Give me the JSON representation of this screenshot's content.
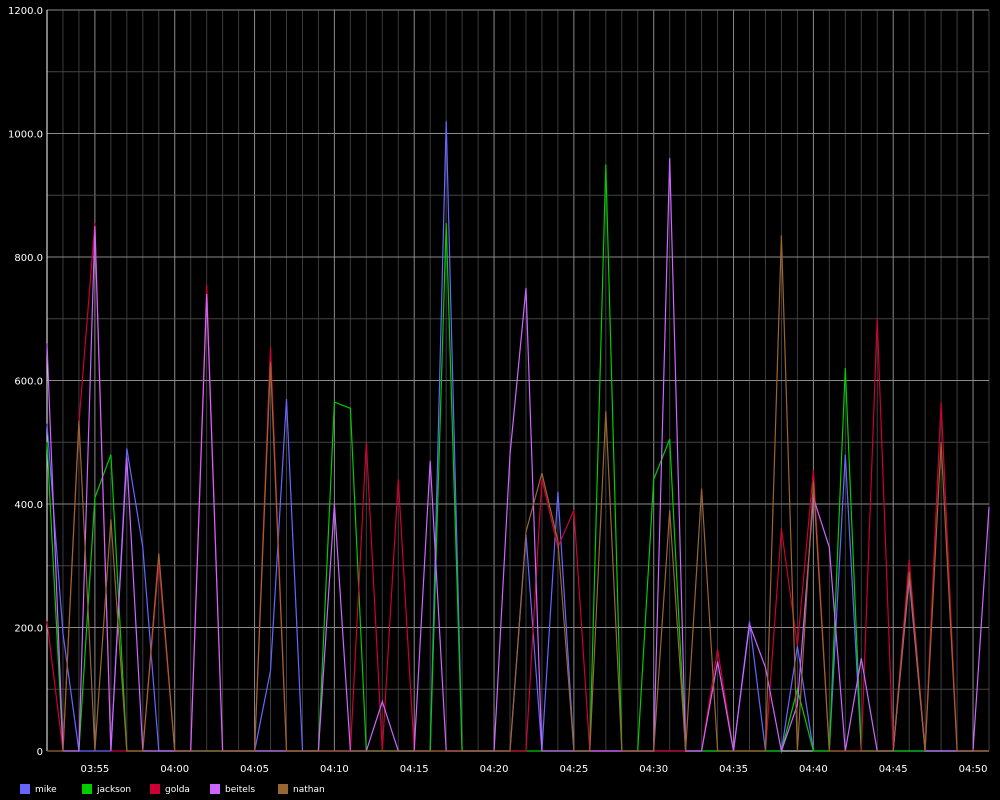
{
  "chart_data": {
    "type": "line",
    "title": "",
    "xlabel": "",
    "ylabel": "",
    "ylim": [
      0,
      1200
    ],
    "grid": true,
    "legend_placement": "bottom-left",
    "background": "#000000",
    "y_ticks": [
      "0",
      "200.0",
      "400.0",
      "600.0",
      "800.0",
      "1000.0",
      "1200.0"
    ],
    "x_ticks": [
      "03:55",
      "04:00",
      "04:05",
      "04:10",
      "04:15",
      "04:20",
      "04:25",
      "04:30",
      "04:35",
      "04:40",
      "04:45",
      "04:50"
    ],
    "x_start": "03:52",
    "x_end": "04:51",
    "series": [
      {
        "name": "mike",
        "color": "#6666ff",
        "points": [
          [
            "03:52",
            530
          ],
          [
            "03:53",
            190
          ],
          [
            "03:54",
            0
          ],
          [
            "03:55",
            0
          ],
          [
            "03:56",
            0
          ],
          [
            "03:57",
            490
          ],
          [
            "03:58",
            330
          ],
          [
            "03:59",
            0
          ],
          [
            "04:00",
            0
          ],
          [
            "04:01",
            0
          ],
          [
            "04:02",
            0
          ],
          [
            "04:03",
            0
          ],
          [
            "04:04",
            0
          ],
          [
            "04:05",
            0
          ],
          [
            "04:06",
            130
          ],
          [
            "04:07",
            570
          ],
          [
            "04:08",
            0
          ],
          [
            "04:09",
            0
          ],
          [
            "04:10",
            0
          ],
          [
            "04:11",
            0
          ],
          [
            "04:12",
            0
          ],
          [
            "04:13",
            0
          ],
          [
            "04:14",
            0
          ],
          [
            "04:15",
            0
          ],
          [
            "04:16",
            0
          ],
          [
            "04:17",
            1020
          ],
          [
            "04:18",
            0
          ],
          [
            "04:19",
            0
          ],
          [
            "04:20",
            0
          ],
          [
            "04:21",
            0
          ],
          [
            "04:22",
            350
          ],
          [
            "04:23",
            0
          ],
          [
            "04:24",
            420
          ],
          [
            "04:25",
            0
          ],
          [
            "04:26",
            0
          ],
          [
            "04:27",
            0
          ],
          [
            "04:28",
            0
          ],
          [
            "04:29",
            0
          ],
          [
            "04:30",
            0
          ],
          [
            "04:31",
            0
          ],
          [
            "04:32",
            0
          ],
          [
            "04:33",
            0
          ],
          [
            "04:34",
            0
          ],
          [
            "04:35",
            0
          ],
          [
            "04:36",
            210
          ],
          [
            "04:37",
            0
          ],
          [
            "04:38",
            0
          ],
          [
            "04:39",
            170
          ],
          [
            "04:40",
            0
          ],
          [
            "04:41",
            0
          ],
          [
            "04:42",
            480
          ],
          [
            "04:43",
            0
          ],
          [
            "04:44",
            0
          ],
          [
            "04:45",
            0
          ],
          [
            "04:46",
            0
          ],
          [
            "04:47",
            0
          ],
          [
            "04:48",
            0
          ],
          [
            "04:49",
            0
          ],
          [
            "04:50",
            0
          ],
          [
            "04:51",
            0
          ]
        ]
      },
      {
        "name": "jackson",
        "color": "#00cc00",
        "points": [
          [
            "03:52",
            500
          ],
          [
            "03:53",
            0
          ],
          [
            "03:54",
            0
          ],
          [
            "03:55",
            410
          ],
          [
            "03:56",
            480
          ],
          [
            "03:57",
            0
          ],
          [
            "03:58",
            0
          ],
          [
            "03:59",
            0
          ],
          [
            "04:00",
            0
          ],
          [
            "04:01",
            0
          ],
          [
            "04:02",
            0
          ],
          [
            "04:03",
            0
          ],
          [
            "04:04",
            0
          ],
          [
            "04:05",
            0
          ],
          [
            "04:06",
            0
          ],
          [
            "04:07",
            0
          ],
          [
            "04:08",
            0
          ],
          [
            "04:09",
            0
          ],
          [
            "04:10",
            565
          ],
          [
            "04:11",
            555
          ],
          [
            "04:12",
            0
          ],
          [
            "04:13",
            0
          ],
          [
            "04:14",
            0
          ],
          [
            "04:15",
            0
          ],
          [
            "04:16",
            0
          ],
          [
            "04:17",
            855
          ],
          [
            "04:18",
            0
          ],
          [
            "04:19",
            0
          ],
          [
            "04:20",
            0
          ],
          [
            "04:21",
            0
          ],
          [
            "04:22",
            0
          ],
          [
            "04:23",
            0
          ],
          [
            "04:24",
            0
          ],
          [
            "04:25",
            0
          ],
          [
            "04:26",
            0
          ],
          [
            "04:27",
            950
          ],
          [
            "04:28",
            0
          ],
          [
            "04:29",
            0
          ],
          [
            "04:30",
            440
          ],
          [
            "04:31",
            505
          ],
          [
            "04:32",
            0
          ],
          [
            "04:33",
            0
          ],
          [
            "04:34",
            0
          ],
          [
            "04:35",
            0
          ],
          [
            "04:36",
            0
          ],
          [
            "04:37",
            0
          ],
          [
            "04:38",
            0
          ],
          [
            "04:39",
            100
          ],
          [
            "04:40",
            0
          ],
          [
            "04:41",
            0
          ],
          [
            "04:42",
            620
          ],
          [
            "04:43",
            0
          ],
          [
            "04:44",
            0
          ],
          [
            "04:45",
            0
          ],
          [
            "04:46",
            0
          ],
          [
            "04:47",
            0
          ],
          [
            "04:48",
            0
          ],
          [
            "04:49",
            0
          ],
          [
            "04:50",
            0
          ],
          [
            "04:51",
            0
          ]
        ]
      },
      {
        "name": "golda",
        "color": "#cc0033",
        "points": [
          [
            "03:52",
            210
          ],
          [
            "03:53",
            0
          ],
          [
            "03:54",
            530
          ],
          [
            "03:55",
            855
          ],
          [
            "03:56",
            0
          ],
          [
            "03:57",
            0
          ],
          [
            "03:58",
            0
          ],
          [
            "03:59",
            305
          ],
          [
            "04:00",
            0
          ],
          [
            "04:01",
            0
          ],
          [
            "04:02",
            755
          ],
          [
            "04:03",
            0
          ],
          [
            "04:04",
            0
          ],
          [
            "04:05",
            0
          ],
          [
            "04:06",
            655
          ],
          [
            "04:07",
            0
          ],
          [
            "04:08",
            0
          ],
          [
            "04:09",
            0
          ],
          [
            "04:10",
            0
          ],
          [
            "04:11",
            0
          ],
          [
            "04:12",
            500
          ],
          [
            "04:13",
            0
          ],
          [
            "04:14",
            440
          ],
          [
            "04:15",
            0
          ],
          [
            "04:16",
            0
          ],
          [
            "04:17",
            0
          ],
          [
            "04:18",
            0
          ],
          [
            "04:19",
            0
          ],
          [
            "04:20",
            0
          ],
          [
            "04:21",
            0
          ],
          [
            "04:22",
            0
          ],
          [
            "04:23",
            440
          ],
          [
            "04:24",
            330
          ],
          [
            "04:25",
            390
          ],
          [
            "04:26",
            0
          ],
          [
            "04:27",
            0
          ],
          [
            "04:28",
            0
          ],
          [
            "04:29",
            0
          ],
          [
            "04:30",
            0
          ],
          [
            "04:31",
            0
          ],
          [
            "04:32",
            0
          ],
          [
            "04:33",
            0
          ],
          [
            "04:34",
            165
          ],
          [
            "04:35",
            0
          ],
          [
            "04:36",
            0
          ],
          [
            "04:37",
            0
          ],
          [
            "04:38",
            360
          ],
          [
            "04:39",
            170
          ],
          [
            "04:40",
            455
          ],
          [
            "04:41",
            0
          ],
          [
            "04:42",
            0
          ],
          [
            "04:43",
            0
          ],
          [
            "04:44",
            700
          ],
          [
            "04:45",
            0
          ],
          [
            "04:46",
            310
          ],
          [
            "04:47",
            0
          ],
          [
            "04:48",
            565
          ],
          [
            "04:49",
            0
          ],
          [
            "04:50",
            0
          ],
          [
            "04:51",
            0
          ]
        ]
      },
      {
        "name": "beitels",
        "color": "#cc66ff",
        "points": [
          [
            "03:52",
            660
          ],
          [
            "03:53",
            0
          ],
          [
            "03:54",
            0
          ],
          [
            "03:55",
            850
          ],
          [
            "03:56",
            0
          ],
          [
            "03:57",
            475
          ],
          [
            "03:58",
            0
          ],
          [
            "03:59",
            0
          ],
          [
            "04:00",
            0
          ],
          [
            "04:01",
            0
          ],
          [
            "04:02",
            740
          ],
          [
            "04:03",
            0
          ],
          [
            "04:04",
            0
          ],
          [
            "04:05",
            0
          ],
          [
            "04:06",
            0
          ],
          [
            "04:07",
            0
          ],
          [
            "04:08",
            0
          ],
          [
            "04:09",
            0
          ],
          [
            "04:10",
            400
          ],
          [
            "04:11",
            0
          ],
          [
            "04:12",
            0
          ],
          [
            "04:13",
            80
          ],
          [
            "04:14",
            0
          ],
          [
            "04:15",
            0
          ],
          [
            "04:16",
            470
          ],
          [
            "04:17",
            0
          ],
          [
            "04:18",
            0
          ],
          [
            "04:19",
            0
          ],
          [
            "04:20",
            0
          ],
          [
            "04:21",
            480
          ],
          [
            "04:22",
            750
          ],
          [
            "04:23",
            0
          ],
          [
            "04:24",
            0
          ],
          [
            "04:25",
            0
          ],
          [
            "04:26",
            0
          ],
          [
            "04:27",
            0
          ],
          [
            "04:28",
            0
          ],
          [
            "04:29",
            0
          ],
          [
            "04:30",
            0
          ],
          [
            "04:31",
            960
          ],
          [
            "04:32",
            0
          ],
          [
            "04:33",
            0
          ],
          [
            "04:34",
            145
          ],
          [
            "04:35",
            0
          ],
          [
            "04:36",
            205
          ],
          [
            "04:37",
            135
          ],
          [
            "04:38",
            0
          ],
          [
            "04:39",
            75
          ],
          [
            "04:40",
            410
          ],
          [
            "04:41",
            330
          ],
          [
            "04:42",
            0
          ],
          [
            "04:43",
            150
          ],
          [
            "04:44",
            0
          ],
          [
            "04:45",
            0
          ],
          [
            "04:46",
            280
          ],
          [
            "04:47",
            0
          ],
          [
            "04:48",
            0
          ],
          [
            "04:49",
            0
          ],
          [
            "04:50",
            0
          ],
          [
            "04:51",
            395
          ]
        ]
      },
      {
        "name": "nathan",
        "color": "#996633",
        "points": [
          [
            "03:52",
            0
          ],
          [
            "03:53",
            0
          ],
          [
            "03:54",
            535
          ],
          [
            "03:55",
            0
          ],
          [
            "03:56",
            375
          ],
          [
            "03:57",
            0
          ],
          [
            "03:58",
            0
          ],
          [
            "03:59",
            320
          ],
          [
            "04:00",
            0
          ],
          [
            "04:01",
            0
          ],
          [
            "04:02",
            0
          ],
          [
            "04:03",
            0
          ],
          [
            "04:04",
            0
          ],
          [
            "04:05",
            0
          ],
          [
            "04:06",
            630
          ],
          [
            "04:07",
            0
          ],
          [
            "04:08",
            0
          ],
          [
            "04:09",
            0
          ],
          [
            "04:10",
            0
          ],
          [
            "04:11",
            0
          ],
          [
            "04:12",
            0
          ],
          [
            "04:13",
            0
          ],
          [
            "04:14",
            0
          ],
          [
            "04:15",
            0
          ],
          [
            "04:16",
            0
          ],
          [
            "04:17",
            0
          ],
          [
            "04:18",
            0
          ],
          [
            "04:19",
            0
          ],
          [
            "04:20",
            0
          ],
          [
            "04:21",
            0
          ],
          [
            "04:22",
            355
          ],
          [
            "04:23",
            450
          ],
          [
            "04:24",
            340
          ],
          [
            "04:25",
            0
          ],
          [
            "04:26",
            0
          ],
          [
            "04:27",
            550
          ],
          [
            "04:28",
            0
          ],
          [
            "04:29",
            0
          ],
          [
            "04:30",
            0
          ],
          [
            "04:31",
            390
          ],
          [
            "04:32",
            0
          ],
          [
            "04:33",
            425
          ],
          [
            "04:34",
            0
          ],
          [
            "04:35",
            0
          ],
          [
            "04:36",
            0
          ],
          [
            "04:37",
            0
          ],
          [
            "04:38",
            835
          ],
          [
            "04:39",
            0
          ],
          [
            "04:40",
            435
          ],
          [
            "04:41",
            0
          ],
          [
            "04:42",
            0
          ],
          [
            "04:43",
            0
          ],
          [
            "04:44",
            0
          ],
          [
            "04:45",
            0
          ],
          [
            "04:46",
            290
          ],
          [
            "04:47",
            0
          ],
          [
            "04:48",
            500
          ],
          [
            "04:49",
            0
          ],
          [
            "04:50",
            0
          ],
          [
            "04:51",
            0
          ]
        ]
      }
    ]
  }
}
